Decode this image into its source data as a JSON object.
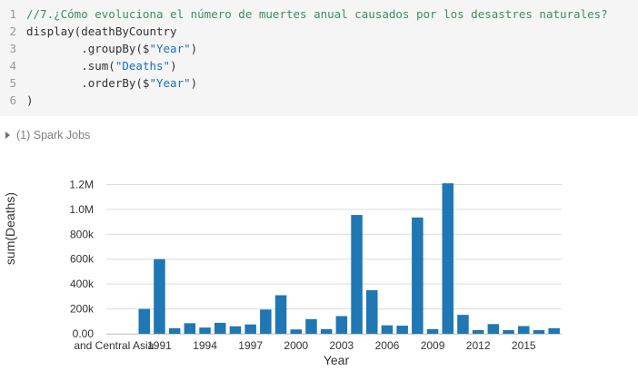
{
  "code_cell": {
    "line_numbers": [
      "1",
      "2",
      "3",
      "4",
      "5",
      "6"
    ],
    "lines": [
      [
        {
          "t": "//7.¿Cómo evoluciona el número de muertes anual causados por los desastres naturales?",
          "c": "comment"
        }
      ],
      [
        {
          "t": "display(deathByCountry",
          "c": ""
        }
      ],
      [
        {
          "t": "        .groupBy($",
          "c": ""
        },
        {
          "t": "\"Year\"",
          "c": "str"
        },
        {
          "t": ")",
          "c": ""
        }
      ],
      [
        {
          "t": "        .sum(",
          "c": ""
        },
        {
          "t": "\"Deaths\"",
          "c": "str"
        },
        {
          "t": ")",
          "c": ""
        }
      ],
      [
        {
          "t": "        .orderBy($",
          "c": ""
        },
        {
          "t": "\"Year\"",
          "c": "str"
        },
        {
          "t": ")",
          "c": ""
        }
      ],
      [
        {
          "t": ")",
          "c": ""
        }
      ]
    ]
  },
  "spark_jobs": {
    "label": "(1) Spark Jobs",
    "icon": "caret-right-icon"
  },
  "chart_data": {
    "type": "bar",
    "xlabel": "Year",
    "ylabel": "sum(Deaths)",
    "ylim": [
      0,
      1240000
    ],
    "y_ticks": [
      0,
      200000,
      400000,
      600000,
      800000,
      1000000,
      1200000
    ],
    "y_tick_labels": [
      "0.00",
      "200k",
      "400k",
      "600k",
      "800k",
      "1.0M",
      "1.2M"
    ],
    "x_tick_labels": [
      {
        "category": "and Central Asia",
        "label": "and Central Asia"
      },
      {
        "category": "1991",
        "label": "1991"
      },
      {
        "category": "1994",
        "label": "1994"
      },
      {
        "category": "1997",
        "label": "1997"
      },
      {
        "category": "2000",
        "label": "2000"
      },
      {
        "category": "2003",
        "label": "2003"
      },
      {
        "category": "2006",
        "label": "2006"
      },
      {
        "category": "2009",
        "label": "2009"
      },
      {
        "category": "2012",
        "label": "2012"
      },
      {
        "category": "2015",
        "label": "2015"
      }
    ],
    "categories": [
      "and Central Asia",
      "1989",
      "1990",
      "1991",
      "1992",
      "1993",
      "1994",
      "1995",
      "1996",
      "1997",
      "1998",
      "1999",
      "2000",
      "2001",
      "2002",
      "2003",
      "2004",
      "2005",
      "2006",
      "2007",
      "2008",
      "2009",
      "2010",
      "2011",
      "2012",
      "2013",
      "2014",
      "2015",
      "2016",
      "2017"
    ],
    "values": [
      0,
      0,
      200000,
      600000,
      45000,
      85000,
      50000,
      88000,
      60000,
      75000,
      195000,
      310000,
      35000,
      118000,
      38000,
      142000,
      955000,
      350000,
      68000,
      65000,
      935000,
      38000,
      1210000,
      152000,
      30000,
      78000,
      30000,
      62000,
      30000,
      45000
    ],
    "bar_color": "#1f77b4",
    "grid": true
  }
}
